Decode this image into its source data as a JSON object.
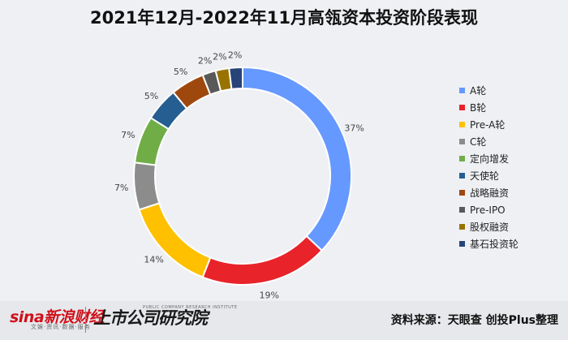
{
  "chart_data": {
    "type": "pie",
    "title": "2021年12月-2022年11月高瓴资本投资阶段表现",
    "categories": [
      "A轮",
      "B轮",
      "Pre-A轮",
      "C轮",
      "定向增发",
      "天使轮",
      "战略融资",
      "Pre-IPO",
      "股权融资",
      "基石投资轮"
    ],
    "values": [
      37,
      19,
      14,
      7,
      7,
      5,
      5,
      2,
      2,
      2
    ],
    "value_labels": [
      "37%",
      "19%",
      "14%",
      "7%",
      "7%",
      "5%",
      "5%",
      "2%",
      "2%",
      "2%"
    ],
    "colors": [
      "#6699ff",
      "#e8232a",
      "#ffc000",
      "#8c8c8c",
      "#70ad47",
      "#255e91",
      "#9e480e",
      "#595959",
      "#997300",
      "#264478"
    ],
    "legend_position": "right",
    "style": "donut"
  },
  "footer": {
    "logo1": "sina新浪财经",
    "logo1_sub": "文娱·资讯·数据·服务",
    "logo2": "上市公司研究院",
    "logo2_en": "PUBLIC COMPANY RESEARCH INSTITUTE",
    "source": "资料来源：天眼查 创投Plus整理"
  }
}
